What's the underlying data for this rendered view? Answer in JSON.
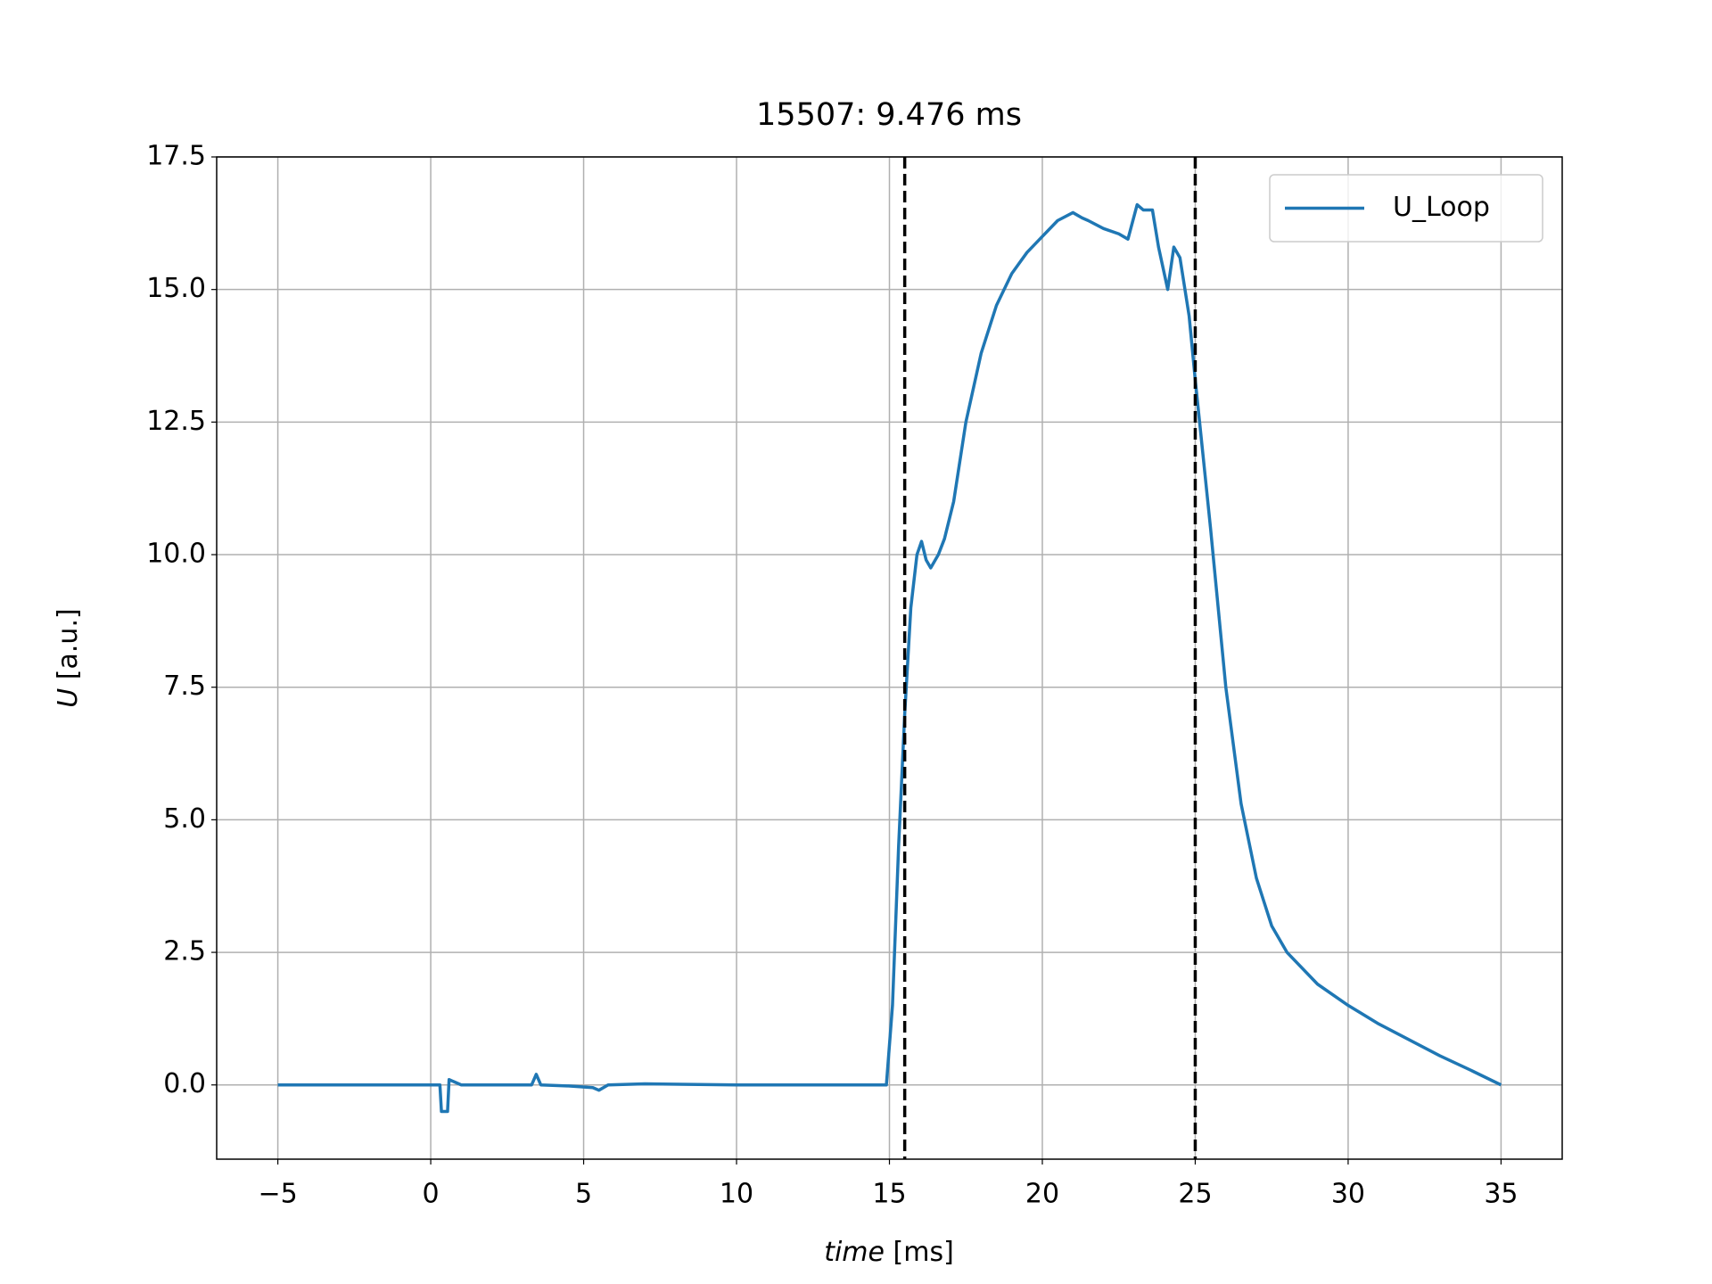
{
  "chart_data": {
    "type": "line",
    "title": "15507: 9.476 ms",
    "xlabel": {
      "symbol": "time",
      "unit": "[ms]"
    },
    "ylabel": {
      "symbol": "U",
      "unit": "[a.u.]"
    },
    "x": [
      -5,
      0,
      0.3,
      0.35,
      0.55,
      0.6,
      0.8,
      1,
      2,
      3.3,
      3.45,
      3.6,
      4.5,
      5.3,
      5.5,
      5.8,
      7,
      10,
      14.9,
      15.1,
      15.3,
      15.5,
      15.7,
      15.9,
      16.05,
      16.2,
      16.35,
      16.6,
      16.8,
      17.1,
      17.5,
      18,
      18.5,
      19,
      19.5,
      20,
      20.5,
      21,
      21.3,
      21.5,
      22,
      22.5,
      22.8,
      23.1,
      23.3,
      23.6,
      23.8,
      24.1,
      24.3,
      24.5,
      24.8,
      25,
      25.5,
      26,
      26.5,
      27,
      27.5,
      28,
      29,
      30,
      31,
      32,
      33,
      34,
      35
    ],
    "series": [
      {
        "name": "U_Loop",
        "color": "#1f77b4",
        "values": [
          0,
          0,
          0,
          -0.5,
          -0.5,
          0.1,
          0.05,
          0,
          0,
          0,
          0.2,
          0,
          -0.02,
          -0.05,
          -0.1,
          0,
          0.02,
          0,
          0,
          1.5,
          4.5,
          7.0,
          9.0,
          10.0,
          10.25,
          9.9,
          9.75,
          10.0,
          10.3,
          11.0,
          12.5,
          13.8,
          14.7,
          15.3,
          15.7,
          16.0,
          16.3,
          16.45,
          16.35,
          16.3,
          16.15,
          16.05,
          15.95,
          16.6,
          16.5,
          16.5,
          15.8,
          15.0,
          15.8,
          15.6,
          14.5,
          13.3,
          10.5,
          7.5,
          5.3,
          3.9,
          3.0,
          2.5,
          1.9,
          1.5,
          1.15,
          0.85,
          0.55,
          0.28,
          0
        ]
      }
    ],
    "vlines": [
      15.5,
      25.0
    ],
    "xlim": [
      -7,
      37
    ],
    "ylim": [
      -1.4,
      17.5
    ],
    "xticks": [
      {
        "value": -5,
        "label": "−5"
      },
      0,
      5,
      10,
      15,
      20,
      25,
      30,
      35
    ],
    "yticks": [
      {
        "value": 0,
        "label": "0.0"
      },
      2.5,
      {
        "value": 5,
        "label": "5.0"
      },
      7.5,
      {
        "value": 10,
        "label": "10.0"
      },
      12.5,
      {
        "value": 15,
        "label": "15.0"
      },
      17.5
    ],
    "grid": true,
    "legend": "upper right"
  }
}
